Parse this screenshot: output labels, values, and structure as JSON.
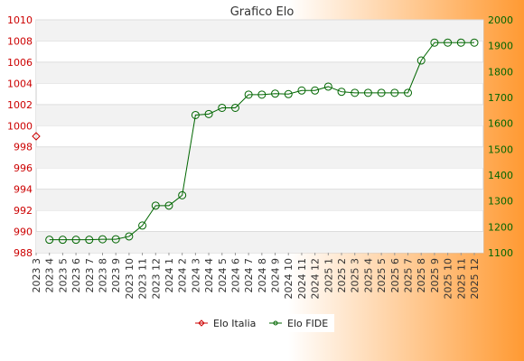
{
  "chart_data": {
    "type": "line",
    "title": "Grafico Elo",
    "categories": [
      "2023 3",
      "2023 4",
      "2023 5",
      "2023 6",
      "2023 7",
      "2023 8",
      "2023 9",
      "2023 10",
      "2023 11",
      "2023 12",
      "2024 1",
      "2024 2",
      "2024 3",
      "2024 4",
      "2024 5",
      "2024 6",
      "2024 7",
      "2024 8",
      "2024 9",
      "2024 10",
      "2024 11",
      "2024 12",
      "2025 1",
      "2025 2",
      "2025 3",
      "2025 4",
      "2025 5",
      "2025 6",
      "2025 7",
      "2025 8",
      "2025 9",
      "2025 10",
      "2025 11",
      "2025 12"
    ],
    "y_left": {
      "min": 988,
      "max": 1010,
      "ticks": [
        988,
        990,
        992,
        994,
        996,
        998,
        1000,
        1002,
        1004,
        1006,
        1008,
        1010
      ]
    },
    "y_right": {
      "min": 1100,
      "max": 2000,
      "ticks": [
        1100,
        1200,
        1300,
        1400,
        1500,
        1600,
        1700,
        1800,
        1900,
        2000
      ]
    },
    "series": [
      {
        "name": "Elo Italia",
        "axis": "left",
        "color": "#cc0000",
        "marker": "diamond",
        "values": [
          999,
          null,
          null,
          null,
          null,
          null,
          null,
          null,
          null,
          null,
          null,
          null,
          null,
          null,
          null,
          null,
          null,
          null,
          null,
          null,
          null,
          null,
          null,
          null,
          null,
          null,
          null,
          null,
          null,
          null,
          null,
          null,
          null,
          null
        ]
      },
      {
        "name": "Elo FIDE",
        "axis": "right",
        "color": "#006600",
        "marker": "circle",
        "values": [
          null,
          1150,
          1150,
          1150,
          1150,
          1152,
          1152,
          1163,
          1205,
          1282,
          1282,
          1322,
          1632,
          1636,
          1660,
          1660,
          1711,
          1711,
          1715,
          1713,
          1727,
          1727,
          1742,
          1722,
          1718,
          1718,
          1718,
          1718,
          1718,
          1843,
          1912,
          1912,
          1912,
          1912
        ]
      }
    ],
    "grid": "horizontal-bands",
    "legend": "bottom-center"
  }
}
